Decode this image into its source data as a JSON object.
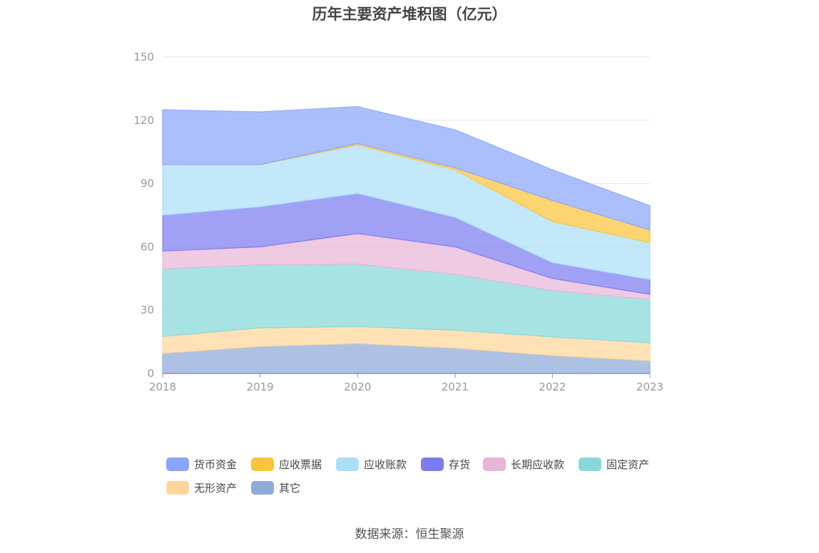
{
  "chart_data": {
    "type": "area",
    "stacked": true,
    "title": "历年主要资产堆积图（亿元）",
    "x": [
      "2018",
      "2019",
      "2020",
      "2021",
      "2022",
      "2023"
    ],
    "ylim": [
      0,
      150
    ],
    "yticks": [
      0,
      30,
      60,
      90,
      120,
      150
    ],
    "grid": true,
    "legend_position": "bottom",
    "series": [
      {
        "name": "其它",
        "color": "#8eaad8",
        "values": [
          9.5,
          12.8,
          14.2,
          12.0,
          8.5,
          6.0
        ]
      },
      {
        "name": "无形资产",
        "color": "#fdd79a",
        "values": [
          8.0,
          8.8,
          8.0,
          8.5,
          8.8,
          8.5
        ]
      },
      {
        "name": "固定资产",
        "color": "#86d8da",
        "values": [
          32.0,
          29.9,
          29.6,
          26.5,
          22.0,
          20.5
        ]
      },
      {
        "name": "长期应收款",
        "color": "#e8b6d8",
        "values": [
          8.5,
          8.5,
          14.5,
          13.0,
          5.7,
          2.5
        ]
      },
      {
        "name": "存货",
        "color": "#7b7cf0",
        "values": [
          17.0,
          19.0,
          19.0,
          14.0,
          7.5,
          7.0
        ]
      },
      {
        "name": "应收账款",
        "color": "#aadff8",
        "values": [
          24.0,
          20.0,
          23.0,
          22.5,
          19.5,
          17.5
        ]
      },
      {
        "name": "应收票据",
        "color": "#fcc43c",
        "values": [
          0.0,
          0.0,
          0.7,
          1.0,
          10.0,
          6.0
        ]
      },
      {
        "name": "货币资金",
        "color": "#8aa6fc",
        "values": [
          26.0,
          25.0,
          17.5,
          18.0,
          14.5,
          11.5
        ]
      }
    ]
  },
  "legend": {
    "items": [
      {
        "label": "货币资金",
        "color": "#8aa6fc"
      },
      {
        "label": "应收票据",
        "color": "#fcc43c"
      },
      {
        "label": "应收账款",
        "color": "#aadff8"
      },
      {
        "label": "存货",
        "color": "#7b7cf0"
      },
      {
        "label": "长期应收款",
        "color": "#e8b6d8"
      },
      {
        "label": "固定资产",
        "color": "#86d8da"
      },
      {
        "label": "无形资产",
        "color": "#fdd79a"
      },
      {
        "label": "其它",
        "color": "#8eaad8"
      }
    ]
  },
  "source": "数据来源：恒生聚源"
}
